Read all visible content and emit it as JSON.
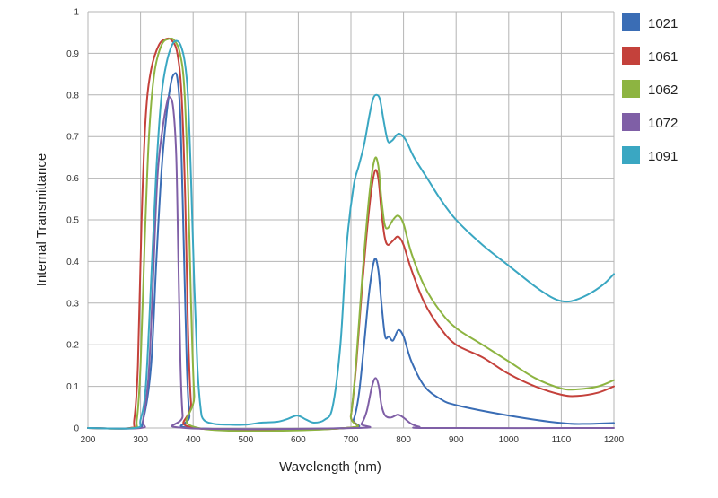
{
  "chart_data": {
    "type": "line",
    "xlabel": "Wavelength (nm)",
    "ylabel": "Internal Transmittance",
    "xlim": [
      200,
      1200
    ],
    "ylim": [
      0,
      1
    ],
    "x_ticks": [
      "200",
      "300",
      "400",
      "500",
      "600",
      "700",
      "800",
      "900",
      "1000",
      "1100",
      "1200"
    ],
    "y_ticks": [
      "0",
      "0.1",
      "0.2",
      "0.3",
      "0.4",
      "0.5",
      "0.6",
      "0.7",
      "0.8",
      "0.9",
      "1"
    ],
    "grid": true,
    "legend_position": "right",
    "series": [
      {
        "name": "1021",
        "color": "#3a6db5",
        "points": [
          [
            200,
            0
          ],
          [
            290,
            0
          ],
          [
            305,
            0.02
          ],
          [
            320,
            0.15
          ],
          [
            330,
            0.4
          ],
          [
            340,
            0.62
          ],
          [
            350,
            0.76
          ],
          [
            358,
            0.83
          ],
          [
            364,
            0.85
          ],
          [
            370,
            0.84
          ],
          [
            376,
            0.74
          ],
          [
            382,
            0.45
          ],
          [
            388,
            0.15
          ],
          [
            393,
            0.03
          ],
          [
            400,
            0
          ],
          [
            690,
            0
          ],
          [
            705,
            0.02
          ],
          [
            715,
            0.08
          ],
          [
            725,
            0.2
          ],
          [
            735,
            0.33
          ],
          [
            745,
            0.405
          ],
          [
            752,
            0.38
          ],
          [
            758,
            0.3
          ],
          [
            765,
            0.22
          ],
          [
            772,
            0.22
          ],
          [
            780,
            0.21
          ],
          [
            790,
            0.235
          ],
          [
            800,
            0.22
          ],
          [
            815,
            0.16
          ],
          [
            840,
            0.1
          ],
          [
            870,
            0.07
          ],
          [
            900,
            0.055
          ],
          [
            1000,
            0.03
          ],
          [
            1100,
            0.012
          ],
          [
            1150,
            0.01
          ],
          [
            1200,
            0.012
          ]
        ]
      },
      {
        "name": "1061",
        "color": "#c4413b",
        "points": [
          [
            200,
            0
          ],
          [
            280,
            0
          ],
          [
            288,
            0.02
          ],
          [
            295,
            0.15
          ],
          [
            302,
            0.5
          ],
          [
            310,
            0.75
          ],
          [
            320,
            0.86
          ],
          [
            335,
            0.92
          ],
          [
            350,
            0.935
          ],
          [
            360,
            0.93
          ],
          [
            370,
            0.9
          ],
          [
            378,
            0.8
          ],
          [
            385,
            0.55
          ],
          [
            390,
            0.25
          ],
          [
            396,
            0.06
          ],
          [
            405,
            0
          ],
          [
            690,
            0
          ],
          [
            700,
            0.03
          ],
          [
            710,
            0.15
          ],
          [
            722,
            0.35
          ],
          [
            735,
            0.53
          ],
          [
            745,
            0.615
          ],
          [
            752,
            0.6
          ],
          [
            758,
            0.52
          ],
          [
            764,
            0.46
          ],
          [
            770,
            0.44
          ],
          [
            780,
            0.45
          ],
          [
            790,
            0.46
          ],
          [
            800,
            0.44
          ],
          [
            815,
            0.38
          ],
          [
            840,
            0.3
          ],
          [
            870,
            0.24
          ],
          [
            900,
            0.2
          ],
          [
            950,
            0.17
          ],
          [
            1000,
            0.13
          ],
          [
            1050,
            0.1
          ],
          [
            1100,
            0.08
          ],
          [
            1130,
            0.077
          ],
          [
            1170,
            0.085
          ],
          [
            1200,
            0.1
          ]
        ]
      },
      {
        "name": "1062",
        "color": "#8db441",
        "points": [
          [
            200,
            0
          ],
          [
            285,
            0
          ],
          [
            293,
            0.02
          ],
          [
            300,
            0.15
          ],
          [
            308,
            0.45
          ],
          [
            316,
            0.7
          ],
          [
            326,
            0.85
          ],
          [
            340,
            0.92
          ],
          [
            355,
            0.935
          ],
          [
            365,
            0.93
          ],
          [
            375,
            0.9
          ],
          [
            383,
            0.82
          ],
          [
            390,
            0.6
          ],
          [
            396,
            0.3
          ],
          [
            402,
            0.08
          ],
          [
            410,
            0
          ],
          [
            690,
            0
          ],
          [
            700,
            0.03
          ],
          [
            710,
            0.16
          ],
          [
            722,
            0.37
          ],
          [
            735,
            0.56
          ],
          [
            745,
            0.645
          ],
          [
            752,
            0.63
          ],
          [
            758,
            0.55
          ],
          [
            764,
            0.49
          ],
          [
            770,
            0.48
          ],
          [
            780,
            0.5
          ],
          [
            790,
            0.51
          ],
          [
            800,
            0.49
          ],
          [
            815,
            0.42
          ],
          [
            840,
            0.34
          ],
          [
            870,
            0.28
          ],
          [
            900,
            0.24
          ],
          [
            950,
            0.2
          ],
          [
            1000,
            0.16
          ],
          [
            1050,
            0.12
          ],
          [
            1100,
            0.095
          ],
          [
            1130,
            0.093
          ],
          [
            1170,
            0.1
          ],
          [
            1200,
            0.115
          ]
        ]
      },
      {
        "name": "1072",
        "color": "#7f5fa6",
        "points": [
          [
            200,
            0
          ],
          [
            300,
            0
          ],
          [
            305,
            0.02
          ],
          [
            315,
            0.12
          ],
          [
            322,
            0.3
          ],
          [
            332,
            0.6
          ],
          [
            342,
            0.72
          ],
          [
            350,
            0.78
          ],
          [
            355,
            0.795
          ],
          [
            362,
            0.77
          ],
          [
            368,
            0.65
          ],
          [
            372,
            0.4
          ],
          [
            376,
            0.15
          ],
          [
            380,
            0.03
          ],
          [
            385,
            0
          ],
          [
            710,
            0
          ],
          [
            720,
            0.01
          ],
          [
            730,
            0.04
          ],
          [
            740,
            0.1
          ],
          [
            747,
            0.12
          ],
          [
            753,
            0.1
          ],
          [
            758,
            0.055
          ],
          [
            765,
            0.03
          ],
          [
            775,
            0.025
          ],
          [
            785,
            0.03
          ],
          [
            790,
            0.032
          ],
          [
            800,
            0.025
          ],
          [
            815,
            0.01
          ],
          [
            830,
            0.003
          ],
          [
            850,
            0
          ],
          [
            1200,
            0
          ]
        ]
      },
      {
        "name": "1091",
        "color": "#3aa7c2",
        "points": [
          [
            200,
            0
          ],
          [
            290,
            0
          ],
          [
            300,
            0.02
          ],
          [
            310,
            0.1
          ],
          [
            320,
            0.35
          ],
          [
            330,
            0.62
          ],
          [
            340,
            0.8
          ],
          [
            350,
            0.88
          ],
          [
            360,
            0.92
          ],
          [
            368,
            0.93
          ],
          [
            376,
            0.92
          ],
          [
            384,
            0.88
          ],
          [
            390,
            0.8
          ],
          [
            396,
            0.6
          ],
          [
            402,
            0.35
          ],
          [
            408,
            0.15
          ],
          [
            414,
            0.05
          ],
          [
            420,
            0.02
          ],
          [
            440,
            0.01
          ],
          [
            470,
            0.008
          ],
          [
            500,
            0.008
          ],
          [
            530,
            0.013
          ],
          [
            560,
            0.015
          ],
          [
            580,
            0.022
          ],
          [
            598,
            0.03
          ],
          [
            615,
            0.02
          ],
          [
            630,
            0.013
          ],
          [
            650,
            0.02
          ],
          [
            665,
            0.05
          ],
          [
            680,
            0.2
          ],
          [
            692,
            0.44
          ],
          [
            705,
            0.58
          ],
          [
            715,
            0.63
          ],
          [
            725,
            0.68
          ],
          [
            735,
            0.75
          ],
          [
            742,
            0.79
          ],
          [
            748,
            0.8
          ],
          [
            755,
            0.79
          ],
          [
            762,
            0.74
          ],
          [
            770,
            0.69
          ],
          [
            778,
            0.69
          ],
          [
            788,
            0.705
          ],
          [
            795,
            0.705
          ],
          [
            805,
            0.69
          ],
          [
            820,
            0.65
          ],
          [
            845,
            0.6
          ],
          [
            870,
            0.55
          ],
          [
            900,
            0.5
          ],
          [
            950,
            0.44
          ],
          [
            1000,
            0.39
          ],
          [
            1050,
            0.34
          ],
          [
            1080,
            0.315
          ],
          [
            1100,
            0.305
          ],
          [
            1120,
            0.305
          ],
          [
            1150,
            0.32
          ],
          [
            1180,
            0.345
          ],
          [
            1200,
            0.37
          ]
        ]
      }
    ]
  }
}
